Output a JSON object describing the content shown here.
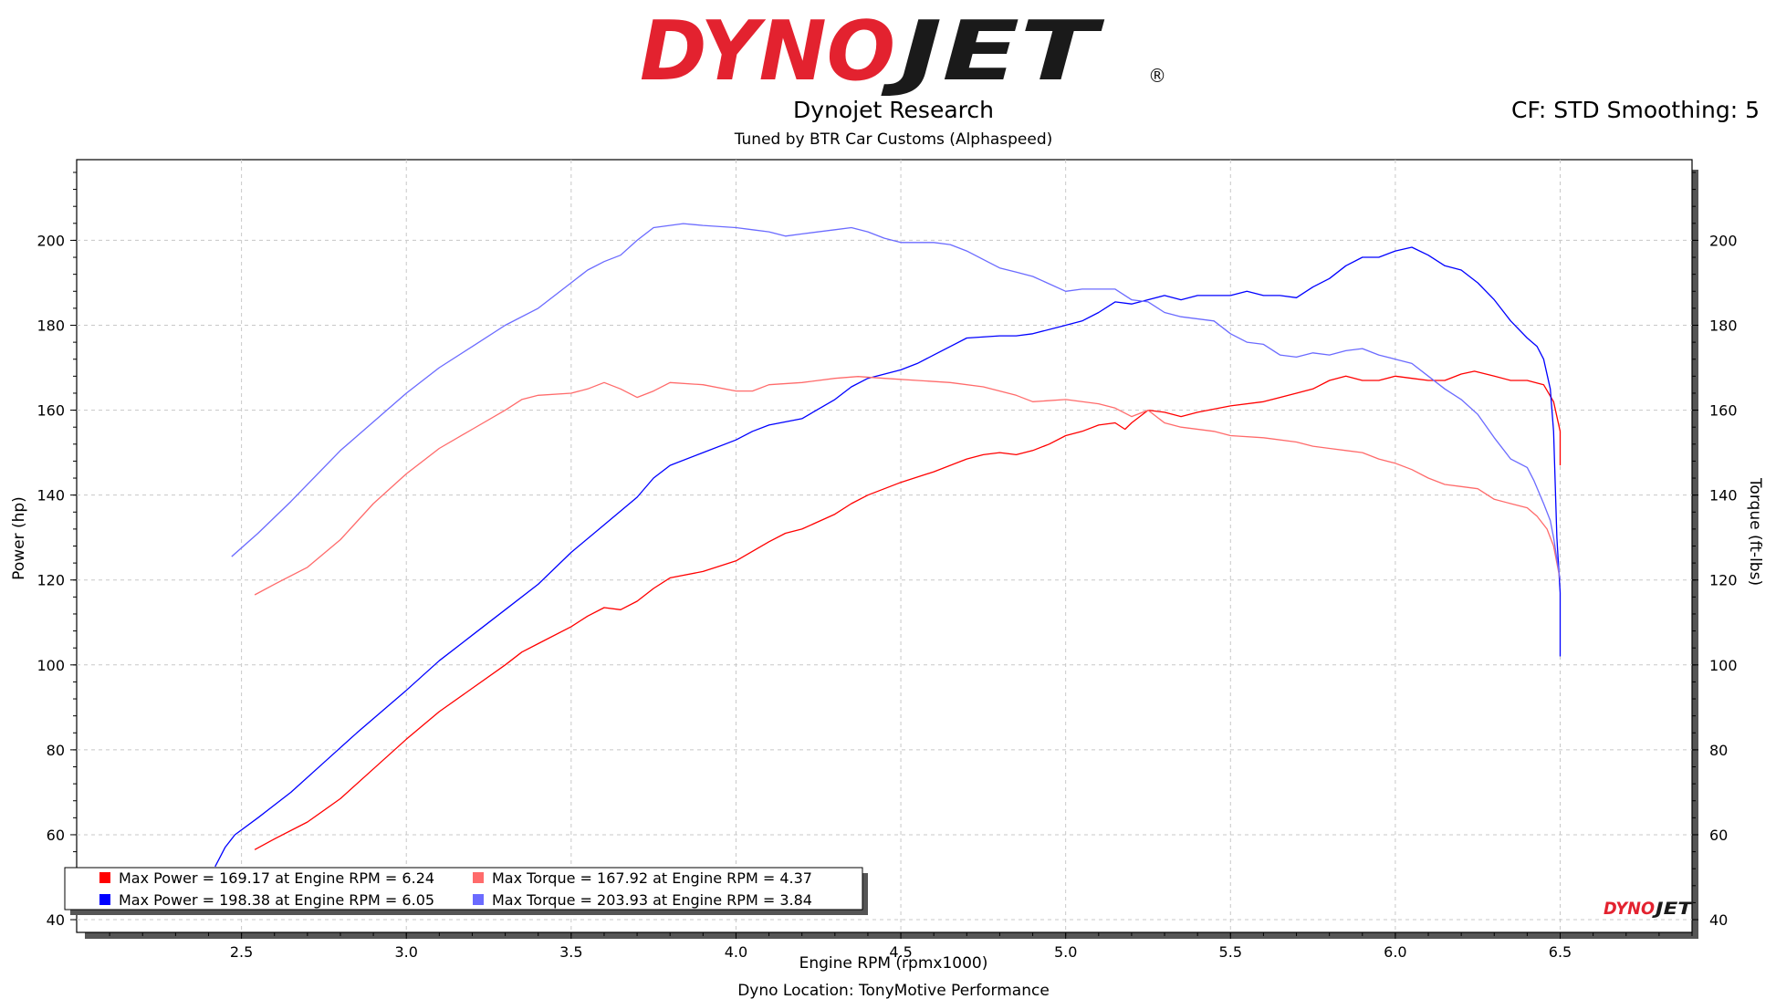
{
  "logo": {
    "brand": "DYNOJET",
    "part1": "DYNO",
    "part2": "JET",
    "mark": "®",
    "color_red": "#e3222f",
    "color_dark": "#1a1a1a"
  },
  "header": {
    "title": "Dynojet Research",
    "subtitle": "Tuned by BTR Car Customs (Alphaspeed)",
    "settings": "CF: STD Smoothing: 5"
  },
  "footer": {
    "location": "Dyno Location: TonyMotive Performance"
  },
  "colors": {
    "red": "#ff0000",
    "blue": "#0000ff",
    "light_red": "#ff6b6b",
    "light_blue": "#6b6bff",
    "grid": "#c8c8c8"
  },
  "chart_data": {
    "type": "line",
    "xlabel": "Engine RPM (rpmx1000)",
    "ylabel_left": "Power (hp)",
    "ylabel_right": "Torque (ft-lbs)",
    "xlim": [
      2.0,
      6.9
    ],
    "ylim_left": [
      37,
      219
    ],
    "ylim_right": [
      37,
      219
    ],
    "xticks": [
      2.5,
      3.0,
      3.5,
      4.0,
      4.5,
      5.0,
      5.5,
      6.0,
      6.5
    ],
    "xtick_labels": [
      "2.5",
      "3.0",
      "3.5",
      "4.0",
      "4.5",
      "5.0",
      "5.5",
      "6.0",
      "6.5"
    ],
    "yticks": [
      40,
      60,
      80,
      100,
      120,
      140,
      160,
      180,
      200
    ],
    "ytick_labels": [
      "40",
      "60",
      "80",
      "100",
      "120",
      "140",
      "160",
      "180",
      "200"
    ],
    "grid": true,
    "legend_position": "bottom-left",
    "legend": [
      {
        "text": "Max Power = 169.17 at Engine RPM = 6.24",
        "color": "#ff0000"
      },
      {
        "text": "Max Torque = 167.92 at Engine RPM = 4.37",
        "color": "#ff6b6b"
      },
      {
        "text": "Max Power = 198.38 at Engine RPM = 6.05",
        "color": "#0000ff"
      },
      {
        "text": "Max Torque = 203.93 at Engine RPM = 3.84",
        "color": "#6b6bff"
      }
    ],
    "series": [
      {
        "color": "#ff0000",
        "axis": "left",
        "points": [
          [
            2.54,
            56.5
          ],
          [
            2.6,
            59
          ],
          [
            2.7,
            63
          ],
          [
            2.8,
            68.5
          ],
          [
            2.9,
            75.5
          ],
          [
            3.0,
            82.5
          ],
          [
            3.1,
            89
          ],
          [
            3.2,
            94.5
          ],
          [
            3.3,
            100
          ],
          [
            3.35,
            103
          ],
          [
            3.4,
            105
          ],
          [
            3.5,
            109
          ],
          [
            3.55,
            111.5
          ],
          [
            3.6,
            113.5
          ],
          [
            3.65,
            113
          ],
          [
            3.7,
            115
          ],
          [
            3.75,
            118
          ],
          [
            3.8,
            120.5
          ],
          [
            3.9,
            122
          ],
          [
            4.0,
            124.5
          ],
          [
            4.1,
            129
          ],
          [
            4.15,
            131
          ],
          [
            4.2,
            132
          ],
          [
            4.3,
            135.5
          ],
          [
            4.35,
            138
          ],
          [
            4.4,
            140
          ],
          [
            4.5,
            143
          ],
          [
            4.6,
            145.5
          ],
          [
            4.7,
            148.5
          ],
          [
            4.75,
            149.5
          ],
          [
            4.8,
            150
          ],
          [
            4.85,
            149.5
          ],
          [
            4.9,
            150.5
          ],
          [
            4.95,
            152
          ],
          [
            5.0,
            154
          ],
          [
            5.05,
            155
          ],
          [
            5.1,
            156.5
          ],
          [
            5.15,
            157
          ],
          [
            5.18,
            155.5
          ],
          [
            5.2,
            157
          ],
          [
            5.25,
            160
          ],
          [
            5.3,
            159.5
          ],
          [
            5.35,
            158.5
          ],
          [
            5.4,
            159.5
          ],
          [
            5.5,
            161
          ],
          [
            5.6,
            162
          ],
          [
            5.7,
            164
          ],
          [
            5.75,
            165
          ],
          [
            5.8,
            167
          ],
          [
            5.85,
            168
          ],
          [
            5.9,
            167
          ],
          [
            5.95,
            167
          ],
          [
            6.0,
            168
          ],
          [
            6.05,
            167.5
          ],
          [
            6.1,
            167
          ],
          [
            6.15,
            167
          ],
          [
            6.2,
            168.5
          ],
          [
            6.24,
            169.17
          ],
          [
            6.3,
            168
          ],
          [
            6.35,
            167
          ],
          [
            6.4,
            167
          ],
          [
            6.45,
            166
          ],
          [
            6.48,
            162
          ],
          [
            6.5,
            155
          ],
          [
            6.5,
            147
          ]
        ]
      },
      {
        "color": "#0000ff",
        "axis": "left",
        "points": [
          [
            2.42,
            52.5
          ],
          [
            2.45,
            57
          ],
          [
            2.48,
            60
          ],
          [
            2.55,
            64
          ],
          [
            2.65,
            70
          ],
          [
            2.75,
            77
          ],
          [
            2.85,
            84
          ],
          [
            3.0,
            94
          ],
          [
            3.1,
            101
          ],
          [
            3.2,
            107
          ],
          [
            3.3,
            113
          ],
          [
            3.4,
            119
          ],
          [
            3.5,
            126.5
          ],
          [
            3.6,
            133
          ],
          [
            3.7,
            139.5
          ],
          [
            3.75,
            144
          ],
          [
            3.8,
            147
          ],
          [
            3.9,
            150
          ],
          [
            4.0,
            153
          ],
          [
            4.05,
            155
          ],
          [
            4.1,
            156.5
          ],
          [
            4.2,
            158
          ],
          [
            4.3,
            162.5
          ],
          [
            4.35,
            165.5
          ],
          [
            4.4,
            167.5
          ],
          [
            4.5,
            169.5
          ],
          [
            4.55,
            171
          ],
          [
            4.6,
            173
          ],
          [
            4.65,
            175
          ],
          [
            4.7,
            177
          ],
          [
            4.8,
            177.5
          ],
          [
            4.85,
            177.5
          ],
          [
            4.9,
            178
          ],
          [
            5.0,
            180
          ],
          [
            5.05,
            181
          ],
          [
            5.1,
            183
          ],
          [
            5.15,
            185.5
          ],
          [
            5.2,
            185
          ],
          [
            5.3,
            187
          ],
          [
            5.35,
            186
          ],
          [
            5.4,
            187
          ],
          [
            5.5,
            187
          ],
          [
            5.55,
            188
          ],
          [
            5.6,
            187
          ],
          [
            5.65,
            187
          ],
          [
            5.7,
            186.5
          ],
          [
            5.75,
            189
          ],
          [
            5.8,
            191
          ],
          [
            5.85,
            194
          ],
          [
            5.9,
            196
          ],
          [
            5.95,
            196
          ],
          [
            6.0,
            197.5
          ],
          [
            6.05,
            198.38
          ],
          [
            6.1,
            196.5
          ],
          [
            6.15,
            194
          ],
          [
            6.2,
            193
          ],
          [
            6.25,
            190
          ],
          [
            6.3,
            186
          ],
          [
            6.35,
            181
          ],
          [
            6.4,
            177
          ],
          [
            6.43,
            175
          ],
          [
            6.45,
            172
          ],
          [
            6.47,
            165
          ],
          [
            6.48,
            155
          ],
          [
            6.49,
            130
          ],
          [
            6.5,
            117
          ],
          [
            6.5,
            102
          ]
        ]
      },
      {
        "color": "#ff6b6b",
        "axis": "right",
        "points": [
          [
            2.54,
            116.5
          ],
          [
            2.6,
            119
          ],
          [
            2.7,
            123
          ],
          [
            2.8,
            129.5
          ],
          [
            2.9,
            138
          ],
          [
            3.0,
            145
          ],
          [
            3.1,
            151
          ],
          [
            3.2,
            155.5
          ],
          [
            3.3,
            160
          ],
          [
            3.35,
            162.5
          ],
          [
            3.4,
            163.5
          ],
          [
            3.5,
            164
          ],
          [
            3.55,
            165
          ],
          [
            3.6,
            166.5
          ],
          [
            3.65,
            165
          ],
          [
            3.7,
            163
          ],
          [
            3.75,
            164.5
          ],
          [
            3.8,
            166.5
          ],
          [
            3.9,
            166
          ],
          [
            4.0,
            164.5
          ],
          [
            4.05,
            164.5
          ],
          [
            4.1,
            166
          ],
          [
            4.2,
            166.5
          ],
          [
            4.3,
            167.5
          ],
          [
            4.37,
            167.92
          ],
          [
            4.45,
            167.5
          ],
          [
            4.55,
            167
          ],
          [
            4.65,
            166.5
          ],
          [
            4.75,
            165.5
          ],
          [
            4.85,
            163.5
          ],
          [
            4.9,
            162
          ],
          [
            5.0,
            162.5
          ],
          [
            5.1,
            161.5
          ],
          [
            5.15,
            160.5
          ],
          [
            5.2,
            158.5
          ],
          [
            5.25,
            160
          ],
          [
            5.3,
            157
          ],
          [
            5.35,
            156
          ],
          [
            5.45,
            155
          ],
          [
            5.5,
            154
          ],
          [
            5.6,
            153.5
          ],
          [
            5.7,
            152.5
          ],
          [
            5.75,
            151.5
          ],
          [
            5.8,
            151
          ],
          [
            5.85,
            150.5
          ],
          [
            5.9,
            150
          ],
          [
            5.95,
            148.5
          ],
          [
            6.0,
            147.5
          ],
          [
            6.05,
            146
          ],
          [
            6.1,
            144
          ],
          [
            6.15,
            142.5
          ],
          [
            6.2,
            142
          ],
          [
            6.25,
            141.5
          ],
          [
            6.3,
            139
          ],
          [
            6.35,
            138
          ],
          [
            6.4,
            137
          ],
          [
            6.43,
            135
          ],
          [
            6.46,
            132
          ],
          [
            6.48,
            128
          ],
          [
            6.5,
            120
          ]
        ]
      },
      {
        "color": "#6b6bff",
        "axis": "right",
        "points": [
          [
            2.47,
            125.5
          ],
          [
            2.55,
            131
          ],
          [
            2.65,
            138.5
          ],
          [
            2.8,
            150.5
          ],
          [
            3.0,
            164
          ],
          [
            3.1,
            170
          ],
          [
            3.2,
            175
          ],
          [
            3.3,
            180
          ],
          [
            3.4,
            184
          ],
          [
            3.5,
            190
          ],
          [
            3.55,
            193
          ],
          [
            3.6,
            195
          ],
          [
            3.65,
            196.5
          ],
          [
            3.7,
            200
          ],
          [
            3.75,
            203
          ],
          [
            3.84,
            203.93
          ],
          [
            3.9,
            203.5
          ],
          [
            4.0,
            203
          ],
          [
            4.05,
            202.5
          ],
          [
            4.1,
            202
          ],
          [
            4.15,
            201
          ],
          [
            4.2,
            201.5
          ],
          [
            4.3,
            202.5
          ],
          [
            4.35,
            203
          ],
          [
            4.4,
            202
          ],
          [
            4.45,
            200.5
          ],
          [
            4.5,
            199.5
          ],
          [
            4.55,
            199.5
          ],
          [
            4.6,
            199.5
          ],
          [
            4.65,
            199
          ],
          [
            4.7,
            197.5
          ],
          [
            4.75,
            195.5
          ],
          [
            4.8,
            193.5
          ],
          [
            4.85,
            192.5
          ],
          [
            4.9,
            191.5
          ],
          [
            5.0,
            188
          ],
          [
            5.05,
            188.5
          ],
          [
            5.1,
            188.5
          ],
          [
            5.15,
            188.5
          ],
          [
            5.2,
            186
          ],
          [
            5.25,
            185.5
          ],
          [
            5.3,
            183
          ],
          [
            5.35,
            182
          ],
          [
            5.45,
            181
          ],
          [
            5.5,
            178
          ],
          [
            5.55,
            176
          ],
          [
            5.6,
            175.5
          ],
          [
            5.65,
            173
          ],
          [
            5.7,
            172.5
          ],
          [
            5.75,
            173.5
          ],
          [
            5.8,
            173
          ],
          [
            5.85,
            174
          ],
          [
            5.9,
            174.5
          ],
          [
            5.95,
            173
          ],
          [
            6.0,
            172
          ],
          [
            6.05,
            171
          ],
          [
            6.1,
            168
          ],
          [
            6.15,
            165
          ],
          [
            6.2,
            162.5
          ],
          [
            6.25,
            159
          ],
          [
            6.3,
            153.5
          ],
          [
            6.35,
            148.5
          ],
          [
            6.4,
            146.5
          ],
          [
            6.42,
            143.5
          ],
          [
            6.45,
            138
          ],
          [
            6.47,
            134
          ],
          [
            6.48,
            130
          ],
          [
            6.5,
            120
          ]
        ]
      }
    ]
  }
}
